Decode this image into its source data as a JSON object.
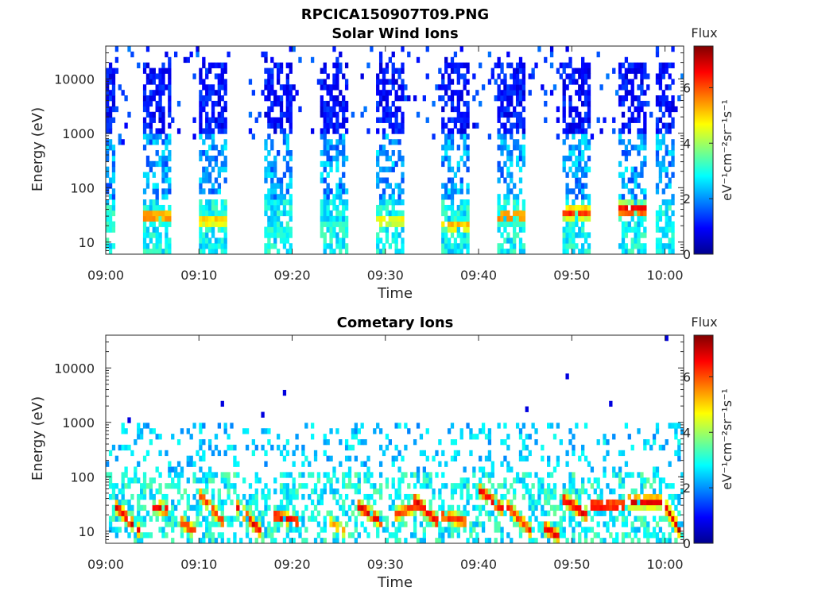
{
  "figure": {
    "title": "RPCICA150907T09.PNG"
  },
  "chart_data": [
    {
      "type": "heatmap",
      "title": "Solar Wind Ions",
      "xlabel": "Time",
      "ylabel": "Energy (eV)",
      "y_scale": "log",
      "ylim": [
        6,
        40000
      ],
      "xlim": [
        "09:00",
        "10:02"
      ],
      "x_ticks": [
        "09:00",
        "09:10",
        "09:20",
        "09:30",
        "09:40",
        "09:50",
        "10:00"
      ],
      "y_ticks": [
        "10",
        "100",
        "1000",
        "10000"
      ],
      "colorbar": {
        "label": "Flux",
        "unit": "eV⁻¹cm⁻²sr⁻¹s⁻¹",
        "range": [
          0,
          7.5
        ],
        "ticks": [
          "0",
          "2",
          "4",
          "6"
        ],
        "colormap": "jet"
      },
      "scan_blocks": [
        {
          "start": "09:00",
          "end": "09:01",
          "peak_energy_eV": 20,
          "peak_flux": 3.5
        },
        {
          "start": "09:04",
          "end": "09:07",
          "peak_energy_eV": 30,
          "peak_flux": 6.0
        },
        {
          "start": "09:10",
          "end": "09:13",
          "peak_energy_eV": 25,
          "peak_flux": 5.5
        },
        {
          "start": "09:17",
          "end": "09:20",
          "peak_energy_eV": 15,
          "peak_flux": 3.5
        },
        {
          "start": "09:23",
          "end": "09:26",
          "peak_energy_eV": 20,
          "peak_flux": 3.5
        },
        {
          "start": "09:29",
          "end": "09:32",
          "peak_energy_eV": 25,
          "peak_flux": 5.0
        },
        {
          "start": "09:36",
          "end": "09:39",
          "peak_energy_eV": 20,
          "peak_flux": 5.5
        },
        {
          "start": "09:42",
          "end": "09:45",
          "peak_energy_eV": 30,
          "peak_flux": 6.0
        },
        {
          "start": "09:49",
          "end": "09:52",
          "peak_energy_eV": 35,
          "peak_flux": 6.5
        },
        {
          "start": "09:55",
          "end": "09:58",
          "peak_energy_eV": 40,
          "peak_flux": 7.0
        },
        {
          "start": "09:59",
          "end": "10:01",
          "peak_energy_eV": 0,
          "peak_flux": 0
        }
      ]
    },
    {
      "type": "heatmap",
      "title": "Cometary Ions",
      "xlabel": "Time",
      "ylabel": "Energy (eV)",
      "y_scale": "log",
      "ylim": [
        6,
        40000
      ],
      "xlim": [
        "09:00",
        "10:02"
      ],
      "x_ticks": [
        "09:00",
        "09:10",
        "09:20",
        "09:30",
        "09:40",
        "09:50",
        "10:00"
      ],
      "y_ticks": [
        "10",
        "100",
        "1000",
        "10000"
      ],
      "colorbar": {
        "label": "Flux",
        "unit": "eV⁻¹cm⁻²sr⁻¹s⁻¹",
        "range": [
          0,
          7.5
        ],
        "ticks": [
          "0",
          "2",
          "4",
          "6"
        ],
        "colormap": "jet"
      },
      "hot_features": [
        {
          "start": "09:01",
          "end": "09:03",
          "energy_start_eV": 30,
          "energy_end_eV": 10,
          "peak_flux": 7.0
        },
        {
          "start": "09:05",
          "end": "09:06",
          "energy_start_eV": 30,
          "energy_end_eV": 25,
          "peak_flux": 7.0
        },
        {
          "start": "09:08",
          "end": "09:09",
          "energy_start_eV": 15,
          "energy_end_eV": 10,
          "peak_flux": 6.5
        },
        {
          "start": "09:10",
          "end": "09:12",
          "energy_start_eV": 50,
          "energy_end_eV": 15,
          "peak_flux": 6.5
        },
        {
          "start": "09:14",
          "end": "09:16",
          "energy_start_eV": 30,
          "energy_end_eV": 10,
          "peak_flux": 7.0
        },
        {
          "start": "09:18",
          "end": "09:20",
          "energy_start_eV": 20,
          "energy_end_eV": 15,
          "peak_flux": 7.0
        },
        {
          "start": "09:24",
          "end": "09:25",
          "energy_start_eV": 15,
          "energy_end_eV": 10,
          "peak_flux": 5.5
        },
        {
          "start": "09:27",
          "end": "09:29",
          "energy_start_eV": 30,
          "energy_end_eV": 15,
          "peak_flux": 7.0
        },
        {
          "start": "09:31",
          "end": "09:33",
          "energy_start_eV": 20,
          "energy_end_eV": 30,
          "peak_flux": 6.5
        },
        {
          "start": "09:33",
          "end": "09:35",
          "energy_start_eV": 40,
          "energy_end_eV": 15,
          "peak_flux": 7.0
        },
        {
          "start": "09:36",
          "end": "09:38",
          "energy_start_eV": 20,
          "energy_end_eV": 15,
          "peak_flux": 6.5
        },
        {
          "start": "09:40",
          "end": "09:42",
          "energy_start_eV": 60,
          "energy_end_eV": 25,
          "peak_flux": 7.0
        },
        {
          "start": "09:43",
          "end": "09:45",
          "energy_start_eV": 30,
          "energy_end_eV": 10,
          "peak_flux": 6.5
        },
        {
          "start": "09:47",
          "end": "09:48",
          "energy_start_eV": 12,
          "energy_end_eV": 8,
          "peak_flux": 7.0
        },
        {
          "start": "09:49",
          "end": "09:51",
          "energy_start_eV": 40,
          "energy_end_eV": 20,
          "peak_flux": 7.0
        },
        {
          "start": "09:52",
          "end": "09:55",
          "energy_start_eV": 30,
          "energy_end_eV": 30,
          "peak_flux": 7.0
        },
        {
          "start": "09:56",
          "end": "09:59",
          "energy_start_eV": 35,
          "energy_end_eV": 35,
          "peak_flux": 7.0
        },
        {
          "start": "10:00",
          "end": "10:01",
          "energy_start_eV": 30,
          "energy_end_eV": 10,
          "peak_flux": 7.0
        }
      ]
    }
  ]
}
